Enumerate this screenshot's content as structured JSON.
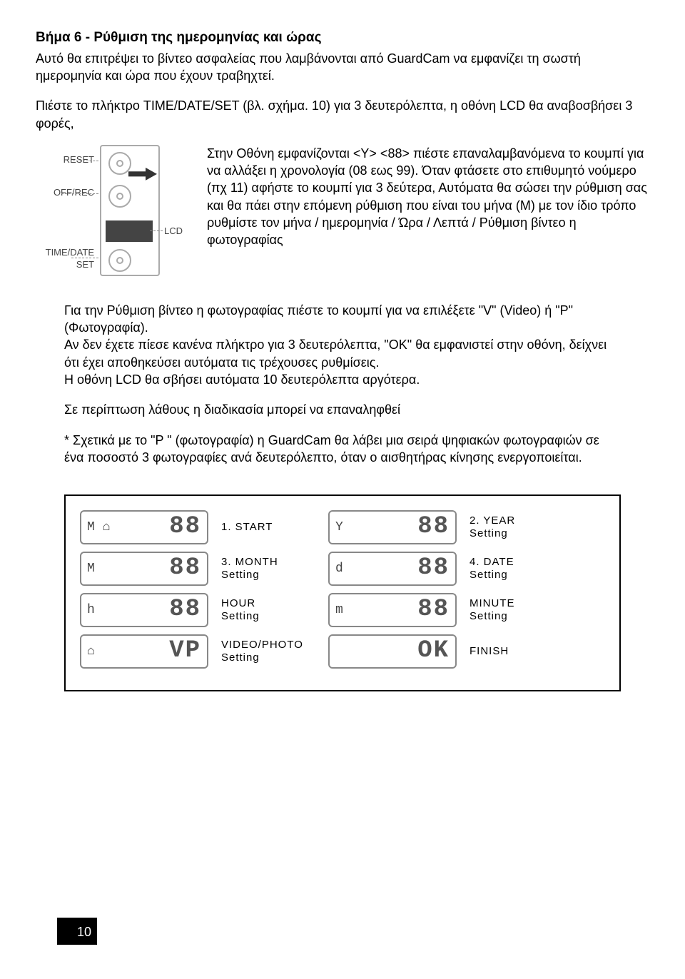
{
  "title": "Βήμα 6 - Ρύθμιση της ημερομηνίας και ώρας",
  "intro": "Αυτό θα επιτρέψει το βίντεο ασφαλείας που λαμβάνονται από GuardCam να εμφανίζει τη σωστή ημερομηνία και ώρα που έχουν τραβηχτεί.",
  "p2": "Πιέστε το πλήκτρο TIME/DATE/SET (βλ. σχήμα. 10) για 3 δευτερόλεπτα, η οθόνη LCD θα αναβοσβήσει 3 φορές,",
  "device_labels": {
    "reset": "RESET",
    "offrec": "OFF/REC",
    "timedateset": "TIME/DATE\nSET",
    "lcd": "LCD"
  },
  "side_text": "Στην Οθόνη εμφανίζονται <Y> <88> πιέστε επαναλαμβανόμενα το κουμπί για να αλλάξει η χρονολογία (08 εως 99). Όταν φτάσετε στο επιθυμητό νούμερο (πχ 11) αφήστε το κουμπί για 3 δεύτερα, Αυτόματα θα σώσει την ρύθμιση σας και θα πάει στην επόμενη ρύθμιση που είναι του μήνα (M) με τον ίδιο τρόπο ρυθμίστε τον μήνα / ημερομηνία / Ώρα / Λεπτά / Ρύθμιση βίντεο η φωτογραφίας",
  "block1": "Για την Ρύθμιση βίντεο η φωτογραφίας  πιέστε το κουμπί για να επιλέξετε \"V\" (Video) ή \"P\" (Φωτογραφία).",
  "block2": "Αν δεν έχετε πίεσε κανένα πλήκτρο για 3 δευτερόλεπτα, \"OK\" θα εμφανιστεί στην οθόνη, δείχνει ότι έχει αποθηκεύσει αυτόματα τις τρέχουσες ρυθμίσεις.",
  "block3": "Η οθόνη LCD θα σβήσει αυτόματα 10 δευτερόλεπτα αργότερα.",
  "block4": "Σε περίπτωση λάθους η διαδικασία μπορεί να επαναληφθεί",
  "block5": "* Σχετικά με το \"P \" (φωτογραφία) η GuardCam θα λάβει μια σειρά ψηφιακών φωτογραφιών σε ένα ποσοστό 3 φωτογραφίες ανά δευτερόλεπτο, όταν ο αισθητήρας κίνησης ενεργοποιείται.",
  "lcd_rows": [
    {
      "left_icon": "M ⌂",
      "left_seg": "88",
      "left_label": "1. START",
      "right_icon": "Y",
      "right_seg": "88",
      "right_label": "2. YEAR\nSetting"
    },
    {
      "left_icon": "M",
      "left_seg": "88",
      "left_label": "3. MONTH\nSetting",
      "right_icon": "d",
      "right_seg": "88",
      "right_label": "4. DATE\nSetting"
    },
    {
      "left_icon": "h",
      "left_seg": "88",
      "left_label": "HOUR\nSetting",
      "right_icon": "m",
      "right_seg": "88",
      "right_label": "MINUTE\nSetting"
    },
    {
      "left_icon": "⌂",
      "left_seg": "VP",
      "left_label": "VIDEO/PHOTO\nSetting",
      "right_icon": "",
      "right_seg": "OK",
      "right_label": "FINISH"
    }
  ],
  "page_number": "10"
}
